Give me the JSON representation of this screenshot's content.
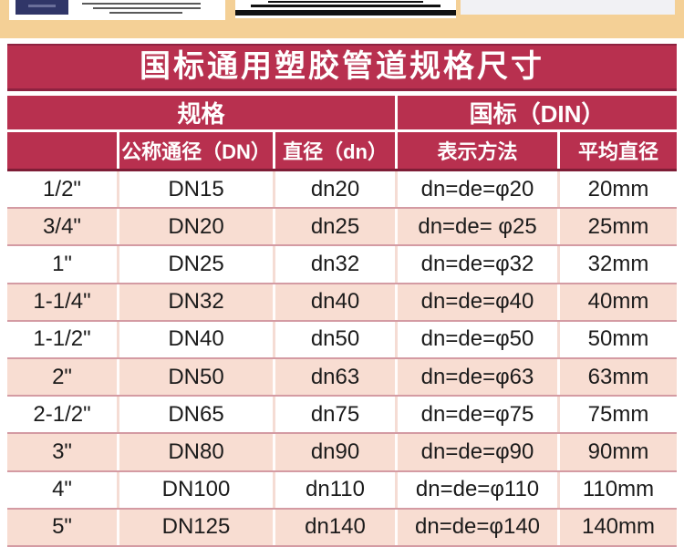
{
  "banner": {
    "title": "国标通用塑胶管道规格尺寸"
  },
  "table": {
    "group_headers": [
      {
        "label": "规格",
        "span_columns": 3
      },
      {
        "label": "国标（DIN）",
        "span_columns": 2
      }
    ],
    "column_headers": [
      "",
      "公称通径（DN）",
      "直径（dn）",
      "表示方法",
      "平均直径"
    ],
    "rows": [
      [
        "1/2\"",
        "DN15",
        "dn20",
        "dn=de=φ20",
        "20mm"
      ],
      [
        "3/4\"",
        "DN20",
        "dn25",
        "dn=de= φ25",
        "25mm"
      ],
      [
        "1\"",
        "DN25",
        "dn32",
        "dn=de=φ32",
        "32mm"
      ],
      [
        "1-1/4\"",
        "DN32",
        "dn40",
        "dn=de=φ40",
        "40mm"
      ],
      [
        "1-1/2\"",
        "DN40",
        "dn50",
        "dn=de=φ50",
        "50mm"
      ],
      [
        "2\"",
        "DN50",
        "dn63",
        "dn=de=φ63",
        "63mm"
      ],
      [
        "2-1/2\"",
        "DN65",
        "dn75",
        "dn=de=φ75",
        "75mm"
      ],
      [
        "3\"",
        "DN80",
        "dn90",
        "dn=de=φ90",
        "90mm"
      ],
      [
        "4\"",
        "DN100",
        "dn110",
        "dn=de=φ110",
        "110mm"
      ],
      [
        "5\"",
        "DN125",
        "dn140",
        "dn=de=φ140",
        "140mm"
      ]
    ]
  },
  "colors": {
    "banner_red": "#b8304f",
    "banner_border_dark": "#8e2240",
    "header_bottom_dark": "#7e1d36",
    "row_pink": "#f8ddd2",
    "row_divider_rose": "#d49ba3",
    "top_strip_tan": "#f4d096",
    "certificate_booklet_navy": "#303668",
    "data_text": "#1b1b1b"
  }
}
